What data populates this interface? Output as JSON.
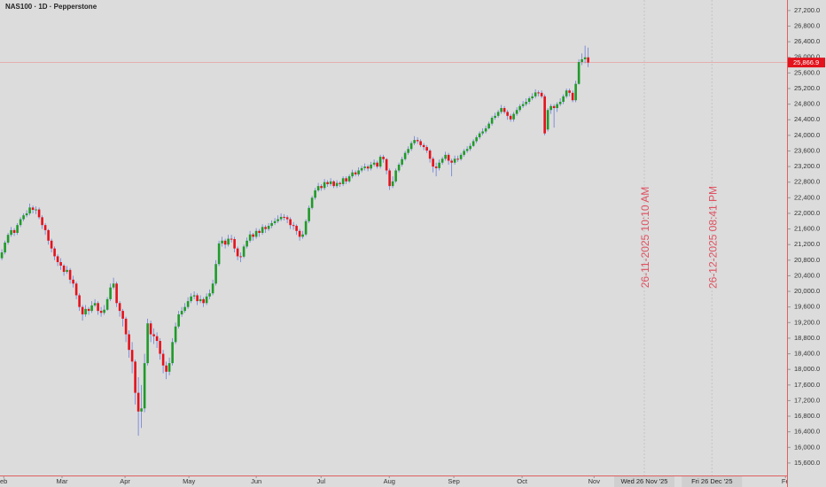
{
  "chart_data": {
    "type": "candlestick",
    "title": "NAS100 · 1D · Pepperstone",
    "up_color": "#1f9a2a",
    "down_color": "#e3121c",
    "wick_color": "#6a7ed6",
    "grid": false,
    "ylim": [
      15280,
      27470
    ],
    "xlim": [
      -0.6,
      253.1
    ],
    "yticks": [
      {
        "value": 15600,
        "label": "15,600.0"
      },
      {
        "value": 16000,
        "label": "16,000.0"
      },
      {
        "value": 16400,
        "label": "16,400.0"
      },
      {
        "value": 16800,
        "label": "16,800.0"
      },
      {
        "value": 17200,
        "label": "17,200.0"
      },
      {
        "value": 17600,
        "label": "17,600.0"
      },
      {
        "value": 18000,
        "label": "18,000.0"
      },
      {
        "value": 18400,
        "label": "18,400.0"
      },
      {
        "value": 18800,
        "label": "18,800.0"
      },
      {
        "value": 19200,
        "label": "19,200.0"
      },
      {
        "value": 19600,
        "label": "19,600.0"
      },
      {
        "value": 20000,
        "label": "20,000.0"
      },
      {
        "value": 20400,
        "label": "20,400.0"
      },
      {
        "value": 20800,
        "label": "20,800.0"
      },
      {
        "value": 21200,
        "label": "21,200.0"
      },
      {
        "value": 21600,
        "label": "21,600.0"
      },
      {
        "value": 22000,
        "label": "22,000.0"
      },
      {
        "value": 22400,
        "label": "22,400.0"
      },
      {
        "value": 22800,
        "label": "22,800.0"
      },
      {
        "value": 23200,
        "label": "23,200.0"
      },
      {
        "value": 23600,
        "label": "23,600.0"
      },
      {
        "value": 24000,
        "label": "24,000.0"
      },
      {
        "value": 24400,
        "label": "24,400.0"
      },
      {
        "value": 24800,
        "label": "24,800.0"
      },
      {
        "value": 25200,
        "label": "25,200.0"
      },
      {
        "value": 25600,
        "label": "25,600.0"
      },
      {
        "value": 26000,
        "label": "26,000.0"
      },
      {
        "value": 26400,
        "label": "26,400.0"
      },
      {
        "value": 26800,
        "label": "26,800.0"
      },
      {
        "value": 27200,
        "label": "27,200.0"
      }
    ],
    "xticks": [
      {
        "value": 0.6,
        "label": "eb"
      },
      {
        "value": 19.4,
        "label": "Mar"
      },
      {
        "value": 39.7,
        "label": "Apr"
      },
      {
        "value": 60.3,
        "label": "May"
      },
      {
        "value": 82,
        "label": "Jun"
      },
      {
        "value": 102.9,
        "label": "Jul"
      },
      {
        "value": 124.9,
        "label": "Aug"
      },
      {
        "value": 145.7,
        "label": "Sep"
      },
      {
        "value": 167.7,
        "label": "Oct"
      },
      {
        "value": 190.9,
        "label": "Nov"
      },
      {
        "value": 252.6,
        "label": "Fe"
      }
    ],
    "annotations": [
      {
        "x": 207.1,
        "label": "26-11-2025 10:10 AM",
        "date_label": "Wed 26 Nov '25"
      },
      {
        "x": 228.9,
        "label": "26-12-2025 08:41 PM",
        "date_label": "Fri 26 Dec '25"
      }
    ],
    "last_price": 25866.9,
    "last_price_label": "25,866.9",
    "candles": [
      [
        20850,
        21080,
        20800,
        21000
      ],
      [
        21000,
        21300,
        20950,
        21250
      ],
      [
        21250,
        21500,
        21200,
        21450
      ],
      [
        21450,
        21650,
        21400,
        21570
      ],
      [
        21570,
        21620,
        21420,
        21500
      ],
      [
        21500,
        21750,
        21450,
        21700
      ],
      [
        21700,
        21900,
        21650,
        21850
      ],
      [
        21850,
        22000,
        21800,
        21950
      ],
      [
        21950,
        22080,
        21900,
        22000
      ],
      [
        22000,
        22250,
        21950,
        22150
      ],
      [
        22150,
        22200,
        22000,
        22090
      ],
      [
        22090,
        22180,
        21980,
        22100
      ],
      [
        22100,
        22150,
        21850,
        21900
      ],
      [
        21900,
        21950,
        21600,
        21700
      ],
      [
        21700,
        21750,
        21450,
        21570
      ],
      [
        21570,
        21600,
        21200,
        21300
      ],
      [
        21300,
        21350,
        21000,
        21100
      ],
      [
        21100,
        21150,
        20800,
        20900
      ],
      [
        20900,
        20950,
        20650,
        20750
      ],
      [
        20750,
        20850,
        20550,
        20660
      ],
      [
        20660,
        20700,
        20400,
        20500
      ],
      [
        20500,
        20650,
        20450,
        20550
      ],
      [
        20550,
        20600,
        20200,
        20300
      ],
      [
        20300,
        20400,
        20100,
        20200
      ],
      [
        20200,
        20250,
        19800,
        19900
      ],
      [
        19900,
        19950,
        19500,
        19600
      ],
      [
        19600,
        19650,
        19250,
        19410
      ],
      [
        19410,
        19650,
        19350,
        19550
      ],
      [
        19550,
        19600,
        19400,
        19500
      ],
      [
        19500,
        19750,
        19450,
        19640
      ],
      [
        19640,
        19800,
        19600,
        19700
      ],
      [
        19700,
        19750,
        19400,
        19500
      ],
      [
        19500,
        19600,
        19350,
        19450
      ],
      [
        19450,
        19650,
        19400,
        19530
      ],
      [
        19530,
        19850,
        19500,
        19800
      ],
      [
        19800,
        20200,
        19750,
        20100
      ],
      [
        20100,
        20350,
        20050,
        20200
      ],
      [
        20200,
        20250,
        19600,
        19700
      ],
      [
        19700,
        19750,
        19350,
        19500
      ],
      [
        19500,
        19550,
        19100,
        19300
      ],
      [
        19300,
        19350,
        18700,
        18900
      ],
      [
        18900,
        19000,
        18300,
        18500
      ],
      [
        18500,
        18700,
        17900,
        18200
      ],
      [
        18200,
        18250,
        17100,
        17400
      ],
      [
        17400,
        17800,
        16300,
        16920
      ],
      [
        16920,
        17600,
        16500,
        17000
      ],
      [
        17000,
        18400,
        16900,
        18160
      ],
      [
        18160,
        19300,
        18100,
        19180
      ],
      [
        19180,
        19250,
        18700,
        18900
      ],
      [
        18900,
        19050,
        18650,
        18850
      ],
      [
        18850,
        18950,
        18550,
        18730
      ],
      [
        18730,
        18800,
        18250,
        18400
      ],
      [
        18400,
        18500,
        17900,
        18100
      ],
      [
        18100,
        18200,
        17750,
        17940
      ],
      [
        17940,
        18300,
        17850,
        18160
      ],
      [
        18160,
        18800,
        18100,
        18700
      ],
      [
        18700,
        19200,
        18650,
        19100
      ],
      [
        19100,
        19500,
        19050,
        19410
      ],
      [
        19410,
        19600,
        19350,
        19500
      ],
      [
        19500,
        19700,
        19450,
        19600
      ],
      [
        19600,
        19850,
        19550,
        19750
      ],
      [
        19750,
        19950,
        19700,
        19870
      ],
      [
        19870,
        20000,
        19800,
        19900
      ],
      [
        19900,
        19950,
        19650,
        19750
      ],
      [
        19750,
        19900,
        19700,
        19800
      ],
      [
        19800,
        19850,
        19600,
        19700
      ],
      [
        19700,
        19950,
        19650,
        19870
      ],
      [
        19870,
        20050,
        19800,
        19950
      ],
      [
        19950,
        20300,
        19900,
        20200
      ],
      [
        20200,
        20800,
        20150,
        20700
      ],
      [
        20700,
        21300,
        20650,
        21230
      ],
      [
        21230,
        21400,
        21150,
        21300
      ],
      [
        21300,
        21350,
        21100,
        21200
      ],
      [
        21200,
        21450,
        21150,
        21350
      ],
      [
        21350,
        21450,
        21250,
        21340
      ],
      [
        21340,
        21400,
        21000,
        21100
      ],
      [
        21100,
        21150,
        20800,
        20900
      ],
      [
        20900,
        21000,
        20750,
        20890
      ],
      [
        20890,
        21200,
        20850,
        21150
      ],
      [
        21150,
        21380,
        21100,
        21300
      ],
      [
        21300,
        21550,
        21250,
        21460
      ],
      [
        21460,
        21500,
        21300,
        21400
      ],
      [
        21400,
        21620,
        21350,
        21550
      ],
      [
        21550,
        21600,
        21400,
        21500
      ],
      [
        21500,
        21720,
        21450,
        21650
      ],
      [
        21650,
        21700,
        21500,
        21600
      ],
      [
        21600,
        21750,
        21550,
        21680
      ],
      [
        21680,
        21820,
        21620,
        21750
      ],
      [
        21750,
        21880,
        21700,
        21800
      ],
      [
        21800,
        21950,
        21750,
        21850
      ],
      [
        21850,
        22000,
        21800,
        21910
      ],
      [
        21910,
        21980,
        21820,
        21900
      ],
      [
        21900,
        21950,
        21750,
        21850
      ],
      [
        21850,
        21900,
        21600,
        21700
      ],
      [
        21700,
        21780,
        21580,
        21680
      ],
      [
        21680,
        21720,
        21450,
        21550
      ],
      [
        21550,
        21600,
        21300,
        21400
      ],
      [
        21400,
        21550,
        21350,
        21460
      ],
      [
        21460,
        21850,
        21420,
        21800
      ],
      [
        21800,
        22200,
        21750,
        22140
      ],
      [
        22140,
        22450,
        22100,
        22400
      ],
      [
        22400,
        22650,
        22350,
        22590
      ],
      [
        22590,
        22780,
        22550,
        22700
      ],
      [
        22700,
        22750,
        22580,
        22650
      ],
      [
        22650,
        22880,
        22600,
        22800
      ],
      [
        22800,
        22850,
        22680,
        22750
      ],
      [
        22750,
        22900,
        22700,
        22820
      ],
      [
        22820,
        22850,
        22650,
        22700
      ],
      [
        22700,
        22850,
        22650,
        22780
      ],
      [
        22780,
        22820,
        22680,
        22750
      ],
      [
        22750,
        22950,
        22700,
        22900
      ],
      [
        22900,
        22950,
        22750,
        22820
      ],
      [
        22820,
        23000,
        22780,
        22950
      ],
      [
        22950,
        23120,
        22900,
        23050
      ],
      [
        23050,
        23100,
        22950,
        23000
      ],
      [
        23000,
        23180,
        22950,
        23100
      ],
      [
        23100,
        23220,
        23050,
        23160
      ],
      [
        23160,
        23280,
        23100,
        23200
      ],
      [
        23200,
        23250,
        23080,
        23150
      ],
      [
        23150,
        23320,
        23100,
        23250
      ],
      [
        23250,
        23380,
        23200,
        23300
      ],
      [
        23300,
        23350,
        23150,
        23200
      ],
      [
        23200,
        23500,
        23150,
        23450
      ],
      [
        23450,
        23500,
        23300,
        23390
      ],
      [
        23390,
        23420,
        23000,
        23100
      ],
      [
        23100,
        23150,
        22600,
        22700
      ],
      [
        22700,
        22950,
        22650,
        22820
      ],
      [
        22820,
        23150,
        22780,
        23100
      ],
      [
        23100,
        23300,
        23050,
        23250
      ],
      [
        23250,
        23450,
        23200,
        23390
      ],
      [
        23390,
        23600,
        23350,
        23550
      ],
      [
        23550,
        23720,
        23500,
        23650
      ],
      [
        23650,
        23850,
        23600,
        23800
      ],
      [
        23800,
        23980,
        23750,
        23880
      ],
      [
        23880,
        23950,
        23780,
        23850
      ],
      [
        23850,
        23900,
        23700,
        23750
      ],
      [
        23750,
        23800,
        23620,
        23700
      ],
      [
        23700,
        23750,
        23550,
        23610
      ],
      [
        23610,
        23650,
        23300,
        23400
      ],
      [
        23400,
        23450,
        23050,
        23200
      ],
      [
        23200,
        23300,
        22950,
        23160
      ],
      [
        23160,
        23380,
        23100,
        23300
      ],
      [
        23300,
        23450,
        23250,
        23400
      ],
      [
        23400,
        23580,
        23350,
        23500
      ],
      [
        23500,
        23550,
        23250,
        23350
      ],
      [
        23350,
        23400,
        22950,
        23300
      ],
      [
        23300,
        23480,
        23250,
        23400
      ],
      [
        23400,
        23480,
        23320,
        23390
      ],
      [
        23390,
        23550,
        23350,
        23500
      ],
      [
        23500,
        23650,
        23450,
        23600
      ],
      [
        23600,
        23720,
        23550,
        23650
      ],
      [
        23650,
        23800,
        23600,
        23730
      ],
      [
        23730,
        23900,
        23700,
        23850
      ],
      [
        23850,
        24000,
        23800,
        23950
      ],
      [
        23950,
        24100,
        23900,
        24050
      ],
      [
        24050,
        24180,
        24000,
        24100
      ],
      [
        24100,
        24250,
        24050,
        24180
      ],
      [
        24180,
        24350,
        24150,
        24300
      ],
      [
        24300,
        24500,
        24250,
        24450
      ],
      [
        24450,
        24580,
        24400,
        24500
      ],
      [
        24500,
        24650,
        24450,
        24600
      ],
      [
        24600,
        24780,
        24550,
        24700
      ],
      [
        24700,
        24750,
        24550,
        24600
      ],
      [
        24600,
        24650,
        24400,
        24500
      ],
      [
        24500,
        24550,
        24350,
        24410
      ],
      [
        24410,
        24600,
        24350,
        24550
      ],
      [
        24550,
        24720,
        24500,
        24650
      ],
      [
        24650,
        24800,
        24600,
        24750
      ],
      [
        24750,
        24880,
        24700,
        24800
      ],
      [
        24800,
        24950,
        24750,
        24860
      ],
      [
        24860,
        25000,
        24800,
        24950
      ],
      [
        24950,
        25080,
        24900,
        25000
      ],
      [
        25000,
        25180,
        24950,
        25100
      ],
      [
        25100,
        25150,
        25000,
        25090
      ],
      [
        25090,
        25150,
        24950,
        25000
      ],
      [
        25000,
        25050,
        24000,
        24050
      ],
      [
        24150,
        24700,
        24100,
        24650
      ],
      [
        24650,
        24800,
        24550,
        24750
      ],
      [
        24750,
        24800,
        24200,
        24700
      ],
      [
        24700,
        24850,
        24600,
        24800
      ],
      [
        24800,
        24950,
        24750,
        24860
      ],
      [
        24860,
        25050,
        24800,
        25000
      ],
      [
        25000,
        25200,
        24950,
        25150
      ],
      [
        25150,
        25200,
        25000,
        25090
      ],
      [
        25090,
        25150,
        24850,
        24900
      ],
      [
        24900,
        25400,
        24850,
        25320
      ],
      [
        25320,
        25950,
        25300,
        25880
      ],
      [
        25880,
        26100,
        25800,
        25950
      ],
      [
        25950,
        26300,
        25850,
        26000
      ],
      [
        26000,
        26250,
        25750,
        25866.9
      ]
    ]
  }
}
